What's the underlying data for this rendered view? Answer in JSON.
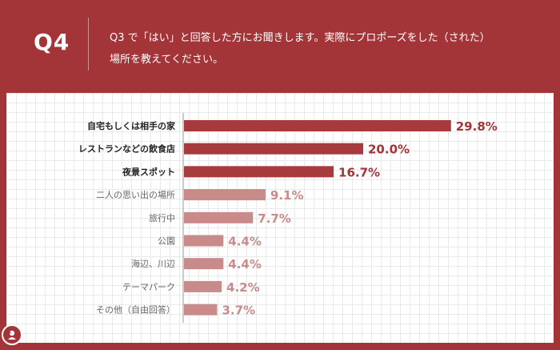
{
  "header": {
    "qnum": "Q4",
    "question_line1": "Q3 で「はい」と回答した方にお聞きします。実際にプロポーズをした（された）",
    "question_line2": "場所を教えてください。"
  },
  "colors": {
    "brand": "#a33539",
    "bar_dark": "#a63a3d",
    "bar_light": "#c98a8a",
    "label_dark": "#a33539",
    "label_light": "#c98a8a"
  },
  "chart_data": {
    "type": "bar",
    "orientation": "horizontal",
    "categories": [
      "自宅もしくは相手の家",
      "レストランなどの飲食店",
      "夜景スポット",
      "二人の思い出の場所",
      "旅行中",
      "公園",
      "海辺、川辺",
      "テーマパーク",
      "その他（自由回答）"
    ],
    "values": [
      29.8,
      20.0,
      16.7,
      9.1,
      7.7,
      4.4,
      4.4,
      4.2,
      3.7
    ],
    "value_labels": [
      "29.8%",
      "20.0%",
      "16.7%",
      "9.1%",
      "7.7%",
      "4.4%",
      "4.4%",
      "4.2%",
      "3.7%"
    ],
    "highlighted_count": 3,
    "xlim": [
      0,
      30
    ],
    "unit": "%"
  }
}
